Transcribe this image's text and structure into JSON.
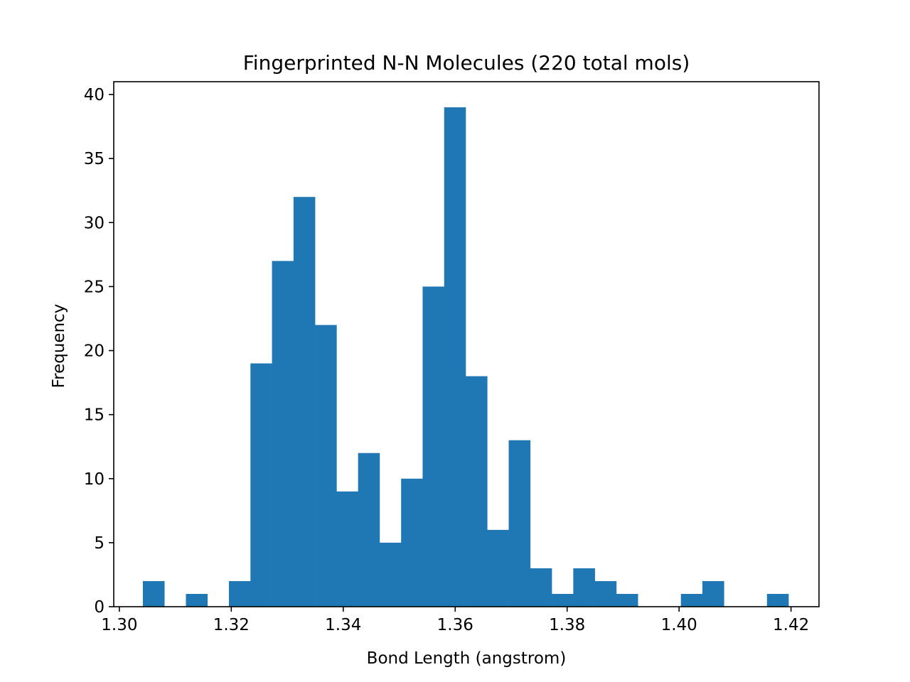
{
  "chart_data": {
    "type": "bar",
    "title": "Fingerprinted N-N Molecules (220 total mols)",
    "xlabel": "Bond Length (angstrom)",
    "ylabel": "Frequency",
    "xlim": [
      1.299,
      1.425
    ],
    "ylim": [
      0,
      41
    ],
    "xticks": [
      {
        "value": 1.3,
        "label": "1.30"
      },
      {
        "value": 1.32,
        "label": "1.32"
      },
      {
        "value": 1.34,
        "label": "1.34"
      },
      {
        "value": 1.36,
        "label": "1.36"
      },
      {
        "value": 1.38,
        "label": "1.38"
      },
      {
        "value": 1.4,
        "label": "1.40"
      },
      {
        "value": 1.42,
        "label": "1.42"
      }
    ],
    "yticks": [
      {
        "value": 0,
        "label": "0"
      },
      {
        "value": 5,
        "label": "5"
      },
      {
        "value": 10,
        "label": "10"
      },
      {
        "value": 15,
        "label": "15"
      },
      {
        "value": 20,
        "label": "20"
      },
      {
        "value": 25,
        "label": "25"
      },
      {
        "value": 30,
        "label": "30"
      },
      {
        "value": 35,
        "label": "35"
      },
      {
        "value": 40,
        "label": "40"
      }
    ],
    "bin_start": 1.3042,
    "bin_width": 0.003845,
    "values": [
      2,
      0,
      1,
      0,
      2,
      19,
      27,
      32,
      22,
      9,
      12,
      5,
      10,
      25,
      39,
      18,
      6,
      13,
      3,
      1,
      3,
      2,
      1,
      0,
      0,
      1,
      2,
      0,
      0,
      1
    ],
    "bar_color": "#1f77b4",
    "grid": false
  }
}
